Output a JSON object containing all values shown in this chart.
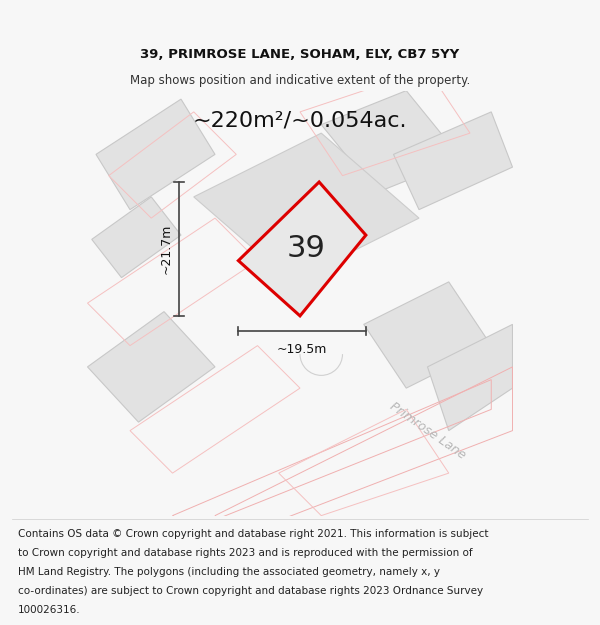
{
  "title_line1": "39, PRIMROSE LANE, SOHAM, ELY, CB7 5YY",
  "title_line2": "Map shows position and indicative extent of the property.",
  "area_label": "~220m²/~0.054ac.",
  "dim_height": "~21.7m",
  "dim_width": "~19.5m",
  "number_label": "39",
  "road_label": "Primrose Lane",
  "footer_lines": [
    "Contains OS data © Crown copyright and database right 2021. This information is subject",
    "to Crown copyright and database rights 2023 and is reproduced with the permission of",
    "HM Land Registry. The polygons (including the associated geometry, namely x, y",
    "co-ordinates) are subject to Crown copyright and database rights 2023 Ordnance Survey",
    "100026316."
  ],
  "bg_color": "#f7f7f7",
  "property_outline_color": "#dd0000",
  "dim_line_color": "#444444",
  "title_fontsize": 9.5,
  "subtitle_fontsize": 8.5,
  "area_fontsize": 16,
  "number_fontsize": 22,
  "dim_fontsize": 9,
  "road_fontsize": 9,
  "footer_fontsize": 7.5
}
